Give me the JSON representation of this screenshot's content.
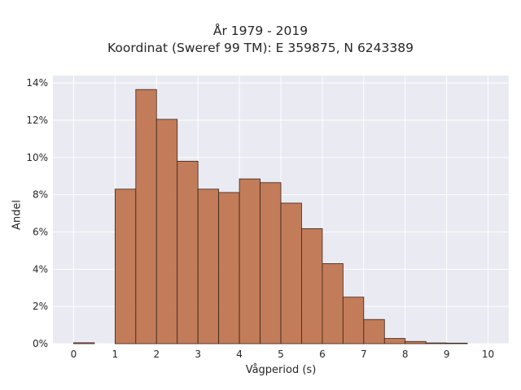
{
  "chart_data": {
    "type": "bar",
    "title": "År 1979 - 2019",
    "subtitle": "Koordinat (Sweref 99 TM): E 359875, N 6243389",
    "xlabel": "Vågperiod (s)",
    "ylabel": "Andel",
    "bin_edges": [
      0,
      0.5,
      1,
      1.5,
      2,
      2.5,
      3,
      3.5,
      4,
      4.5,
      5,
      5.5,
      6,
      6.5,
      7,
      7.5,
      8,
      8.5,
      9,
      9.5,
      10
    ],
    "values": [
      0.05,
      0.0,
      8.3,
      13.65,
      12.05,
      9.8,
      8.3,
      8.12,
      8.85,
      8.65,
      7.55,
      6.18,
      4.3,
      2.5,
      1.3,
      0.28,
      0.12,
      0.04,
      0.03,
      0.0
    ],
    "xlim": [
      -0.5,
      10.5
    ],
    "ylim": [
      0,
      14.4
    ],
    "xticks": [
      "0",
      "1",
      "2",
      "3",
      "4",
      "5",
      "6",
      "7",
      "8",
      "9",
      "10"
    ],
    "yticks": [
      "0%",
      "2%",
      "4%",
      "6%",
      "8%",
      "10%",
      "12%",
      "14%"
    ],
    "ytick_values": [
      0,
      2,
      4,
      6,
      8,
      10,
      12,
      14
    ],
    "grid": true,
    "bar_color": "#c07650",
    "bar_edge_color": "#3a2418",
    "plot_background": "#eaeaf2"
  }
}
